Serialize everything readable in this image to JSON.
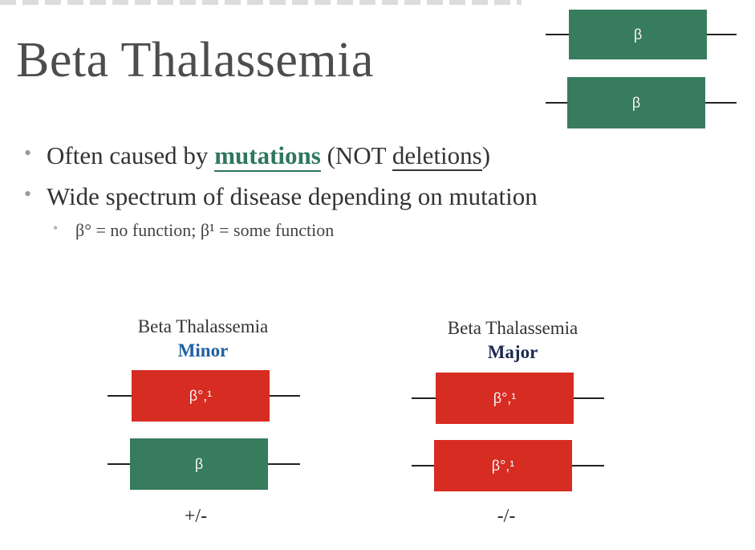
{
  "slide": {
    "title": "Beta Thalassemia",
    "bullets": [
      {
        "before": "Often caused by ",
        "highlight": "mutations",
        "after": " (NOT ",
        "underlined": "deletions",
        "end": ")"
      },
      {
        "text": "Wide spectrum of disease depending on mutation"
      }
    ],
    "subbullet": "β° = no function; β¹ = some function"
  },
  "top_genes": [
    {
      "label": "β",
      "color": "#377c5d"
    },
    {
      "label": "β",
      "color": "#377c5d"
    }
  ],
  "minor": {
    "caption_line1": "Beta Thalassemia",
    "caption_line2": "Minor",
    "genes": [
      {
        "label": "β°,¹",
        "color": "#d72c22"
      },
      {
        "label": "β",
        "color": "#377c5d"
      }
    ],
    "genotype": "+/-"
  },
  "major": {
    "caption_line1": "Beta Thalassemia",
    "caption_line2": "Major",
    "genes": [
      {
        "label": "β°,¹",
        "color": "#d72c22"
      },
      {
        "label": "β°,¹",
        "color": "#d72c22"
      }
    ],
    "genotype": "-/-"
  }
}
